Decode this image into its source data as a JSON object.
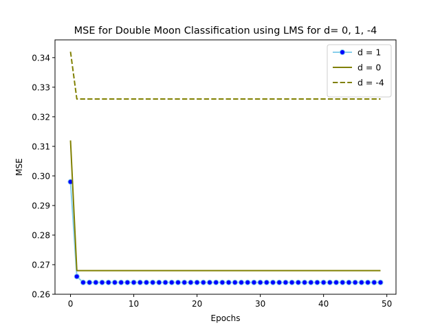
{
  "chart_data": {
    "type": "line",
    "title": "MSE for Double Moon Classification using LMS for d= 0, 1, -4",
    "xlabel": "Epochs",
    "ylabel": "MSE",
    "xlim": [
      -2.45,
      51.45
    ],
    "ylim": [
      0.26,
      0.346
    ],
    "xticks": [
      0,
      10,
      20,
      30,
      40,
      50
    ],
    "yticks": [
      0.26,
      0.27,
      0.28,
      0.29,
      0.3,
      0.31,
      0.32,
      0.33,
      0.34
    ],
    "grid": false,
    "legend_position": "top-right",
    "x": [
      0,
      1,
      2,
      3,
      4,
      5,
      6,
      7,
      8,
      9,
      10,
      11,
      12,
      13,
      14,
      15,
      16,
      17,
      18,
      19,
      20,
      21,
      22,
      23,
      24,
      25,
      26,
      27,
      28,
      29,
      30,
      31,
      32,
      33,
      34,
      35,
      36,
      37,
      38,
      39,
      40,
      41,
      42,
      43,
      44,
      45,
      46,
      47,
      48,
      49
    ],
    "series": [
      {
        "name": "d = 1",
        "style": "solid-markers",
        "line_color": "#87ceeb",
        "marker_color": "#0000ff",
        "values": [
          0.298,
          0.266,
          0.264,
          0.264,
          0.264,
          0.264,
          0.264,
          0.264,
          0.264,
          0.264,
          0.264,
          0.264,
          0.264,
          0.264,
          0.264,
          0.264,
          0.264,
          0.264,
          0.264,
          0.264,
          0.264,
          0.264,
          0.264,
          0.264,
          0.264,
          0.264,
          0.264,
          0.264,
          0.264,
          0.264,
          0.264,
          0.264,
          0.264,
          0.264,
          0.264,
          0.264,
          0.264,
          0.264,
          0.264,
          0.264,
          0.264,
          0.264,
          0.264,
          0.264,
          0.264,
          0.264,
          0.264,
          0.264,
          0.264,
          0.264
        ]
      },
      {
        "name": "d = 0",
        "style": "solid",
        "line_color": "#808000",
        "values": [
          0.312,
          0.268,
          0.268,
          0.268,
          0.268,
          0.268,
          0.268,
          0.268,
          0.268,
          0.268,
          0.268,
          0.268,
          0.268,
          0.268,
          0.268,
          0.268,
          0.268,
          0.268,
          0.268,
          0.268,
          0.268,
          0.268,
          0.268,
          0.268,
          0.268,
          0.268,
          0.268,
          0.268,
          0.268,
          0.268,
          0.268,
          0.268,
          0.268,
          0.268,
          0.268,
          0.268,
          0.268,
          0.268,
          0.268,
          0.268,
          0.268,
          0.268,
          0.268,
          0.268,
          0.268,
          0.268,
          0.268,
          0.268,
          0.268,
          0.268
        ]
      },
      {
        "name": "d = -4",
        "style": "dashed",
        "line_color": "#808000",
        "values": [
          0.342,
          0.326,
          0.326,
          0.326,
          0.326,
          0.326,
          0.326,
          0.326,
          0.326,
          0.326,
          0.326,
          0.326,
          0.326,
          0.326,
          0.326,
          0.326,
          0.326,
          0.326,
          0.326,
          0.326,
          0.326,
          0.326,
          0.326,
          0.326,
          0.326,
          0.326,
          0.326,
          0.326,
          0.326,
          0.326,
          0.326,
          0.326,
          0.326,
          0.326,
          0.326,
          0.326,
          0.326,
          0.326,
          0.326,
          0.326,
          0.326,
          0.326,
          0.326,
          0.326,
          0.326,
          0.326,
          0.326,
          0.326,
          0.326,
          0.326
        ]
      }
    ]
  }
}
